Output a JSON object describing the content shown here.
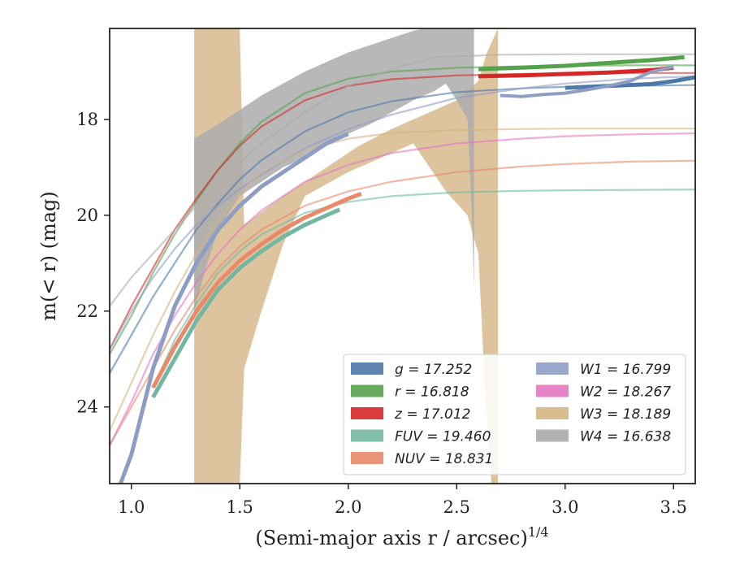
{
  "chart_data": {
    "type": "line",
    "xlabel": "(Semi-major axis r / arcsec)",
    "xlabel_power": "1/4",
    "ylabel": "m(< r) (mag)",
    "xlim": [
      0.9,
      3.6
    ],
    "ylim": [
      25.6,
      16.1
    ],
    "y_inverted": true,
    "grid": false,
    "legend_position": "lower right",
    "xticks": [
      "1.0",
      "1.5",
      "2.0",
      "2.5",
      "3.0",
      "3.5"
    ],
    "yticks": [
      "18",
      "20",
      "22",
      "24"
    ],
    "series": [
      {
        "name": "g",
        "label": "g = 17.252",
        "color": "#4c78a8",
        "model_x": [
          0.9,
          1.0,
          1.1,
          1.2,
          1.3,
          1.4,
          1.5,
          1.6,
          1.8,
          2.0,
          2.2,
          2.5,
          2.8,
          3.0,
          3.3,
          3.6
        ],
        "model_y": [
          23.3,
          22.5,
          21.7,
          21.0,
          20.3,
          19.75,
          19.25,
          18.85,
          18.25,
          17.85,
          17.62,
          17.43,
          17.35,
          17.32,
          17.3,
          17.28
        ],
        "data_x": [
          3.0,
          3.1,
          3.2,
          3.3,
          3.4,
          3.5,
          3.6
        ],
        "data_y": [
          17.34,
          17.32,
          17.3,
          17.28,
          17.26,
          17.2,
          17.12
        ]
      },
      {
        "name": "r",
        "label": "r = 16.818",
        "color": "#54a24b",
        "model_x": [
          0.9,
          1.0,
          1.1,
          1.2,
          1.3,
          1.4,
          1.5,
          1.6,
          1.8,
          2.0,
          2.2,
          2.5,
          2.8,
          3.0,
          3.3,
          3.6
        ],
        "model_y": [
          22.9,
          22.1,
          21.2,
          20.4,
          19.7,
          19.05,
          18.5,
          18.05,
          17.45,
          17.15,
          17.0,
          16.92,
          16.89,
          16.88,
          16.87,
          16.87
        ],
        "data_x": [
          2.6,
          2.8,
          3.0,
          3.2,
          3.4,
          3.55
        ],
        "data_y": [
          16.95,
          16.92,
          16.88,
          16.82,
          16.76,
          16.7
        ]
      },
      {
        "name": "z",
        "label": "z = 17.012",
        "color": "#d62728",
        "model_x": [
          0.9,
          1.0,
          1.1,
          1.2,
          1.3,
          1.4,
          1.5,
          1.6,
          1.8,
          2.0,
          2.2,
          2.5,
          2.8,
          3.0,
          3.3,
          3.6
        ],
        "model_y": [
          22.8,
          21.9,
          21.1,
          20.3,
          19.65,
          19.05,
          18.55,
          18.15,
          17.6,
          17.3,
          17.16,
          17.08,
          17.05,
          17.04,
          17.03,
          17.03
        ],
        "data_x": [
          2.6,
          2.8,
          3.0,
          3.2,
          3.4,
          3.5
        ],
        "data_y": [
          17.1,
          17.08,
          17.05,
          17.02,
          16.97,
          16.92
        ]
      },
      {
        "name": "FUV",
        "label": "FUV = 19.460",
        "color": "#72b7a1",
        "model_x": [
          1.1,
          1.2,
          1.3,
          1.4,
          1.5,
          1.6,
          1.8,
          2.0,
          2.2,
          2.5,
          2.8,
          3.0,
          3.3,
          3.6
        ],
        "model_y": [
          23.6,
          22.6,
          21.85,
          21.2,
          20.75,
          20.4,
          19.95,
          19.72,
          19.6,
          19.52,
          19.49,
          19.48,
          19.47,
          19.46
        ],
        "data_x": [
          1.1,
          1.2,
          1.3,
          1.4,
          1.5,
          1.6,
          1.7,
          1.8,
          1.9,
          1.96
        ],
        "data_y": [
          23.8,
          23.0,
          22.2,
          21.55,
          21.1,
          20.75,
          20.45,
          20.2,
          20.0,
          19.88
        ]
      },
      {
        "name": "NUV",
        "label": "NUV = 18.831",
        "color": "#e8896a",
        "model_x": [
          0.9,
          1.0,
          1.1,
          1.2,
          1.3,
          1.4,
          1.5,
          1.6,
          1.8,
          2.0,
          2.2,
          2.5,
          2.8,
          3.0,
          3.3,
          3.6
        ],
        "model_y": [
          24.8,
          24.0,
          23.2,
          22.4,
          21.7,
          21.1,
          20.65,
          20.3,
          19.8,
          19.5,
          19.3,
          19.1,
          18.98,
          18.93,
          18.88,
          18.86
        ],
        "data_x": [
          1.1,
          1.2,
          1.3,
          1.4,
          1.5,
          1.6,
          1.7,
          1.8,
          1.9,
          2.0,
          2.06
        ],
        "data_y": [
          23.6,
          22.75,
          22.0,
          21.4,
          20.95,
          20.6,
          20.3,
          20.05,
          19.85,
          19.65,
          19.55
        ]
      },
      {
        "name": "W1",
        "label": "W1 = 16.799",
        "color": "#8e9dc4",
        "model_x": [
          0.9,
          1.0,
          1.1,
          1.2,
          1.3,
          1.4,
          1.5,
          1.6,
          1.8,
          2.0,
          2.2,
          2.5,
          2.8,
          3.0,
          3.3,
          3.6
        ],
        "model_y": [
          22.8,
          22.0,
          21.3,
          20.7,
          20.2,
          19.8,
          19.45,
          19.15,
          18.6,
          18.2,
          17.9,
          17.55,
          17.35,
          17.25,
          17.15,
          17.1
        ],
        "data_x": [
          0.95,
          1.0,
          1.1,
          1.2,
          1.3,
          1.4,
          1.5,
          1.6,
          1.7,
          1.8,
          1.9,
          2.0
        ],
        "data_y": [
          25.6,
          25.0,
          23.2,
          21.9,
          21.0,
          20.3,
          19.8,
          19.4,
          19.1,
          18.8,
          18.5,
          18.3
        ],
        "data2_x": [
          2.7,
          2.8,
          2.9,
          3.0,
          3.1,
          3.2,
          3.3,
          3.4,
          3.5
        ],
        "data2_y": [
          17.5,
          17.52,
          17.48,
          17.45,
          17.38,
          17.3,
          17.2,
          17.0,
          16.9
        ]
      },
      {
        "name": "W2",
        "label": "W2 = 18.267",
        "color": "#e377c2",
        "model_x": [
          0.9,
          1.0,
          1.1,
          1.2,
          1.3,
          1.4,
          1.5,
          1.6,
          1.8,
          2.0,
          2.2,
          2.5,
          2.8,
          3.0,
          3.3,
          3.6
        ],
        "model_y": [
          24.8,
          23.9,
          22.9,
          22.1,
          21.4,
          20.8,
          20.3,
          19.9,
          19.3,
          18.95,
          18.7,
          18.5,
          18.4,
          18.35,
          18.31,
          18.29
        ]
      },
      {
        "name": "W3",
        "label": "W3 = 18.189",
        "color": "#d4b483",
        "model_x": [
          0.9,
          1.0,
          1.1,
          1.2,
          1.3,
          1.4,
          1.5,
          1.6,
          1.8,
          2.0,
          2.2,
          2.5,
          2.8,
          3.0,
          3.3,
          3.6
        ],
        "model_y": [
          24.5,
          23.5,
          22.5,
          21.6,
          20.8,
          20.1,
          19.55,
          19.1,
          18.65,
          18.4,
          18.28,
          18.22,
          18.2,
          18.19,
          18.19,
          18.19
        ],
        "band_upper": [
          [
            1.29,
            16.1
          ],
          [
            1.5,
            16.1
          ],
          [
            1.52,
            20.2
          ],
          [
            1.7,
            19.6
          ],
          [
            1.9,
            19.0
          ],
          [
            2.05,
            18.55
          ],
          [
            2.2,
            18.2
          ],
          [
            2.4,
            17.8
          ],
          [
            2.5,
            17.6
          ],
          [
            2.6,
            17.2
          ],
          [
            2.64,
            16.6
          ],
          [
            2.69,
            16.1
          ]
        ],
        "band_lower": [
          [
            1.29,
            25.6
          ],
          [
            1.5,
            25.6
          ],
          [
            1.52,
            23.2
          ],
          [
            1.6,
            22.0
          ],
          [
            1.7,
            20.6
          ],
          [
            1.8,
            19.6
          ],
          [
            2.0,
            19.1
          ],
          [
            2.1,
            18.9
          ],
          [
            2.3,
            18.5
          ],
          [
            2.45,
            19.5
          ],
          [
            2.55,
            20.0
          ],
          [
            2.6,
            20.8
          ],
          [
            2.63,
            23.6
          ],
          [
            2.66,
            25.6
          ],
          [
            2.69,
            25.6
          ]
        ]
      },
      {
        "name": "W4",
        "label": "W4 = 16.638",
        "color": "#ababab",
        "model_x": [
          0.9,
          1.0,
          1.1,
          1.2,
          1.3,
          1.4,
          1.5,
          1.6,
          1.8,
          2.0,
          2.2,
          2.4,
          2.7,
          3.0,
          3.3,
          3.6
        ],
        "model_y": [
          21.9,
          21.3,
          20.8,
          20.3,
          19.8,
          19.35,
          18.9,
          18.5,
          17.85,
          17.3,
          16.95,
          16.7,
          16.65,
          16.64,
          16.64,
          16.64
        ],
        "band_upper": [
          [
            1.29,
            18.4
          ],
          [
            1.4,
            18.1
          ],
          [
            1.5,
            17.8
          ],
          [
            1.6,
            17.5
          ],
          [
            1.7,
            17.25
          ],
          [
            1.8,
            17.0
          ],
          [
            1.9,
            16.8
          ],
          [
            2.0,
            16.6
          ],
          [
            2.1,
            16.45
          ],
          [
            2.2,
            16.3
          ],
          [
            2.3,
            16.15
          ],
          [
            2.35,
            16.1
          ],
          [
            2.58,
            16.1
          ]
        ],
        "band_lower": [
          [
            1.29,
            22.0
          ],
          [
            1.35,
            21.0
          ],
          [
            1.4,
            20.3
          ],
          [
            1.5,
            19.6
          ],
          [
            1.6,
            19.3
          ],
          [
            1.7,
            19.0
          ],
          [
            1.8,
            18.8
          ],
          [
            1.9,
            18.5
          ],
          [
            2.0,
            18.3
          ],
          [
            2.1,
            18.1
          ],
          [
            2.2,
            17.85
          ],
          [
            2.3,
            17.6
          ],
          [
            2.4,
            17.4
          ],
          [
            2.45,
            17.25
          ],
          [
            2.5,
            17.6
          ],
          [
            2.55,
            18.0
          ],
          [
            2.57,
            20.0
          ],
          [
            2.58,
            21.5
          ]
        ]
      }
    ]
  }
}
